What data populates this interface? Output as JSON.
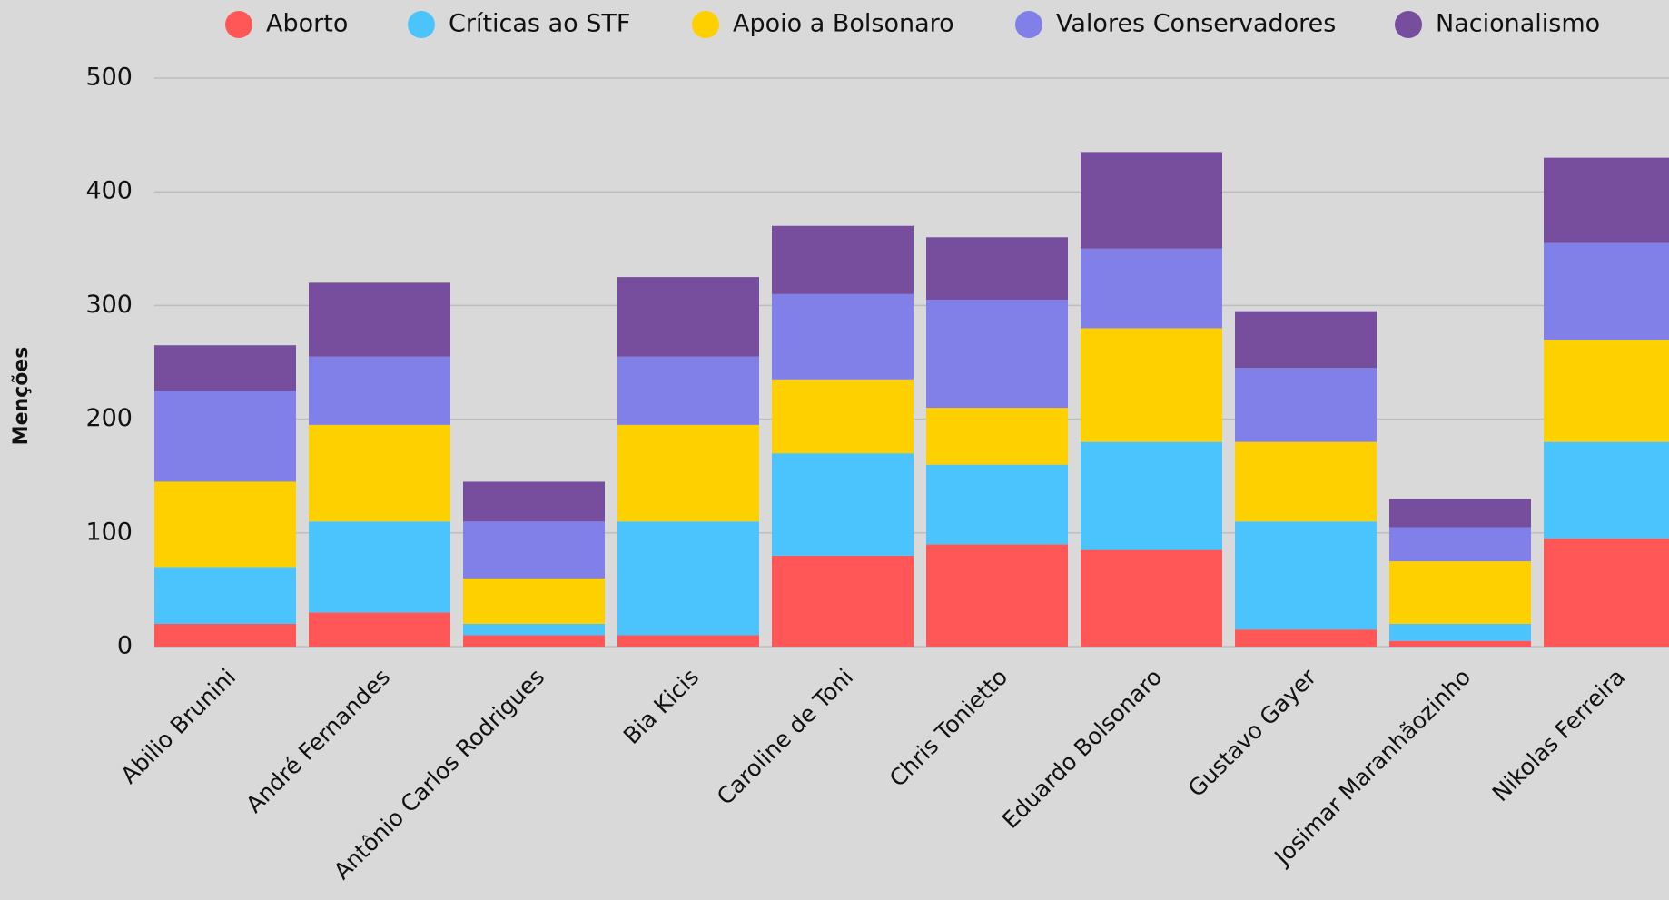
{
  "chart_data": {
    "type": "stacked_bar",
    "y_label": "Menções",
    "categories": [
      "Abilio Brunini",
      "André Fernandes",
      "Antônio Carlos Rodrigues",
      "Bia Kicis",
      "Caroline de Toni",
      "Chris Tonietto",
      "Eduardo Bolsonaro",
      "Gustavo Gayer",
      "Josimar Maranhãozinho",
      "Nikolas Ferreira"
    ],
    "series": [
      {
        "name": "Aborto",
        "color": "#ff5757",
        "values": [
          20,
          30,
          10,
          10,
          80,
          90,
          85,
          15,
          5,
          95
        ]
      },
      {
        "name": "Críticas ao STF",
        "color": "#4bc3fc",
        "values": [
          50,
          80,
          10,
          100,
          90,
          70,
          95,
          95,
          15,
          85
        ]
      },
      {
        "name": "Apoio a Bolsonaro",
        "color": "#ffd000",
        "values": [
          75,
          85,
          40,
          85,
          65,
          50,
          100,
          70,
          55,
          90
        ]
      },
      {
        "name": "Valores Conservadores",
        "color": "#8080e8",
        "values": [
          80,
          60,
          50,
          60,
          75,
          95,
          70,
          65,
          30,
          85
        ]
      },
      {
        "name": "Nacionalismo",
        "color": "#774e9e",
        "values": [
          40,
          65,
          35,
          70,
          60,
          55,
          85,
          50,
          25,
          75
        ]
      }
    ],
    "ylim": [
      0,
      500
    ],
    "yticks": [
      0,
      100,
      200,
      300,
      400,
      500
    ],
    "grid": true
  }
}
